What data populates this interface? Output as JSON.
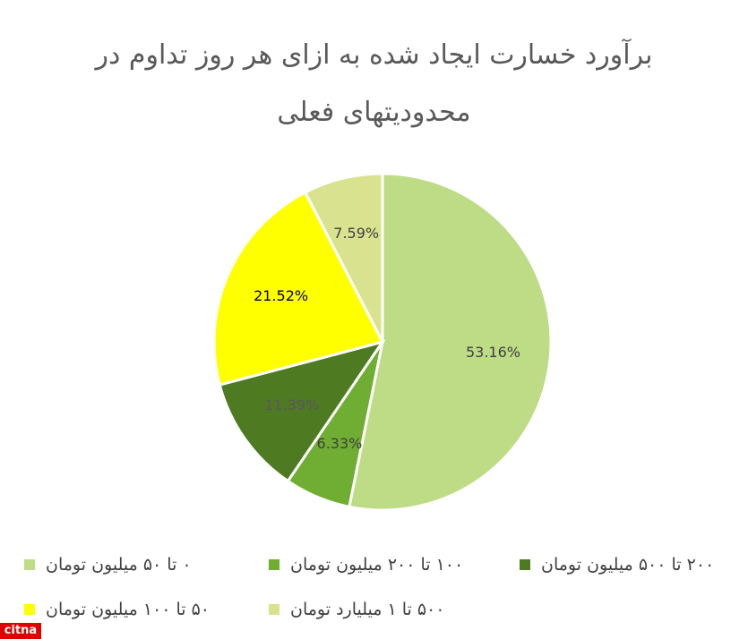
{
  "chart_data": {
    "type": "pie",
    "title": "برآورد خسارت ایجاد شده به ازای هر روز تداوم در محدودیتهای فعلی",
    "categories": [
      "۰ تا ۵۰ میلیون تومان",
      "۱۰۰ تا ۲۰۰ میلیون تومان",
      "۲۰۰ تا ۵۰۰ میلیون تومان",
      "۵۰ تا ۱۰۰ میلیون تومان",
      "۵۰۰ تا ۱ میلیارد تومان"
    ],
    "values": [
      53.16,
      6.33,
      11.39,
      21.52,
      7.59
    ],
    "value_labels": [
      "53.16%",
      "6.33%",
      "11.39%",
      "21.52%",
      "7.59%"
    ],
    "colors": [
      "#bddc85",
      "#70ad33",
      "#4e7a22",
      "#ffff00",
      "#d9e38f"
    ],
    "legend": "bottom"
  },
  "watermark": "citna"
}
